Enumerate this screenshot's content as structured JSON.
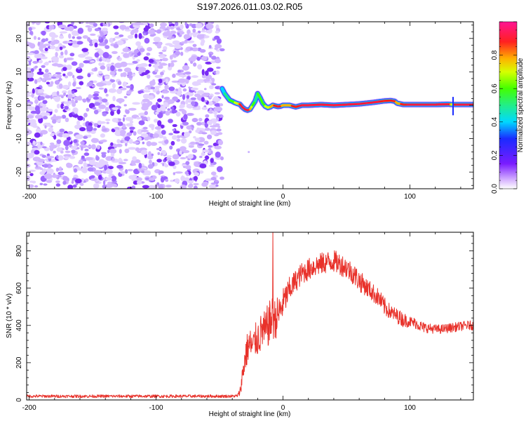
{
  "title": "S197.2026.011.03.02.R05",
  "colors": {
    "signal": "#e8312a",
    "noise": "#7b2ff0",
    "axis": "#000000"
  },
  "chart_data": [
    {
      "type": "heatmap",
      "name": "spectrogram",
      "xlabel": "Height of straight line (km)",
      "ylabel": "Frequency (Hz)",
      "xlim": [
        -202,
        150
      ],
      "ylim": [
        -25,
        25
      ],
      "xticks": [
        -200,
        -100,
        0,
        100
      ],
      "yticks": [
        -20,
        -10,
        0,
        10,
        20
      ],
      "noise_region_x": [
        -202,
        -48
      ],
      "ridge": {
        "x": [
          -48,
          -46,
          -44,
          -42,
          -40,
          -38,
          -36,
          -34,
          -32,
          -30,
          -28,
          -26,
          -24,
          -22,
          -20,
          -18,
          -16,
          -14,
          -12,
          -10,
          -8,
          -6,
          -4,
          -2,
          0,
          5,
          10,
          15,
          20,
          30,
          40,
          50,
          60,
          70,
          80,
          85,
          88,
          90,
          95,
          100,
          110,
          120,
          130,
          134,
          136,
          140,
          150
        ],
        "freq": [
          5,
          3.5,
          2.5,
          1.5,
          1.2,
          0.8,
          0.5,
          0.3,
          -0.6,
          -1.2,
          -1.5,
          -1.2,
          0,
          1.2,
          3.5,
          2.2,
          0.6,
          -0.3,
          -0.7,
          -0.5,
          0,
          -0.2,
          -0.4,
          -0.3,
          0,
          0,
          -0.5,
          0,
          0,
          0.2,
          0,
          0.2,
          0.4,
          0.8,
          1.3,
          1.4,
          1.2,
          0.6,
          0.2,
          0.2,
          0.2,
          0.2,
          0.3,
          0.2,
          0.2,
          0.2,
          0.2
        ],
        "amplitude": [
          0.4,
          0.4,
          0.45,
          0.5,
          0.55,
          0.6,
          0.65,
          0.8,
          0.95,
          1.0,
          1.0,
          0.85,
          0.55,
          0.5,
          0.5,
          0.55,
          0.55,
          0.6,
          0.65,
          0.7,
          0.75,
          0.8,
          0.9,
          0.9,
          0.7,
          0.75,
          0.85,
          0.9,
          1.0,
          1.0,
          1.0,
          0.95,
          0.9,
          0.95,
          0.85,
          0.85,
          0.85,
          0.7,
          0.85,
          0.9,
          1.0,
          1.0,
          1.0,
          0.6,
          0.85,
          1.0,
          1.0
        ]
      },
      "colorbar": {
        "label": "Normalized spectral amplitude",
        "range": [
          0,
          1
        ],
        "ticks": [
          "0.0",
          "0.2",
          "0.4",
          "0.6",
          "0.8"
        ]
      }
    },
    {
      "type": "line",
      "name": "snr",
      "xlabel": "Height of straight line (km)",
      "ylabel": "SNR (10 * v/v)",
      "xlim": [
        -202,
        150
      ],
      "ylim": [
        0,
        900
      ],
      "xticks": [
        -200,
        -100,
        0,
        100
      ],
      "yticks": [
        0,
        200,
        400,
        600,
        800
      ],
      "envelope": {
        "x": [
          -202,
          -40,
          -36,
          -34,
          -32,
          -30,
          -28,
          -26,
          -24,
          -22,
          -20,
          -18,
          -16,
          -14,
          -12,
          -10,
          -8,
          -6,
          -4,
          -2,
          0,
          5,
          10,
          15,
          20,
          25,
          30,
          35,
          40,
          45,
          50,
          55,
          60,
          65,
          70,
          75,
          80,
          85,
          90,
          95,
          100,
          105,
          110,
          115,
          120,
          125,
          130,
          135,
          140,
          145,
          150
        ],
        "mean": [
          20,
          20,
          22,
          40,
          130,
          220,
          280,
          300,
          280,
          320,
          330,
          350,
          380,
          360,
          400,
          420,
          440,
          430,
          460,
          480,
          520,
          590,
          640,
          680,
          700,
          720,
          730,
          740,
          745,
          730,
          710,
          680,
          640,
          610,
          580,
          550,
          500,
          470,
          450,
          430,
          420,
          410,
          390,
          385,
          380,
          380,
          385,
          390,
          395,
          400,
          400
        ],
        "noise_amplitude": [
          8,
          8,
          8,
          20,
          60,
          80,
          90,
          90,
          80,
          90,
          100,
          100,
          110,
          110,
          120,
          120,
          120,
          110,
          100,
          90,
          80,
          70,
          60,
          60,
          60,
          60,
          60,
          60,
          60,
          60,
          60,
          60,
          60,
          50,
          50,
          50,
          50,
          40,
          40,
          40,
          30,
          30,
          30,
          25,
          25,
          25,
          25,
          25,
          25,
          25,
          25
        ]
      },
      "spike": {
        "x": -8,
        "value": 900
      }
    }
  ]
}
